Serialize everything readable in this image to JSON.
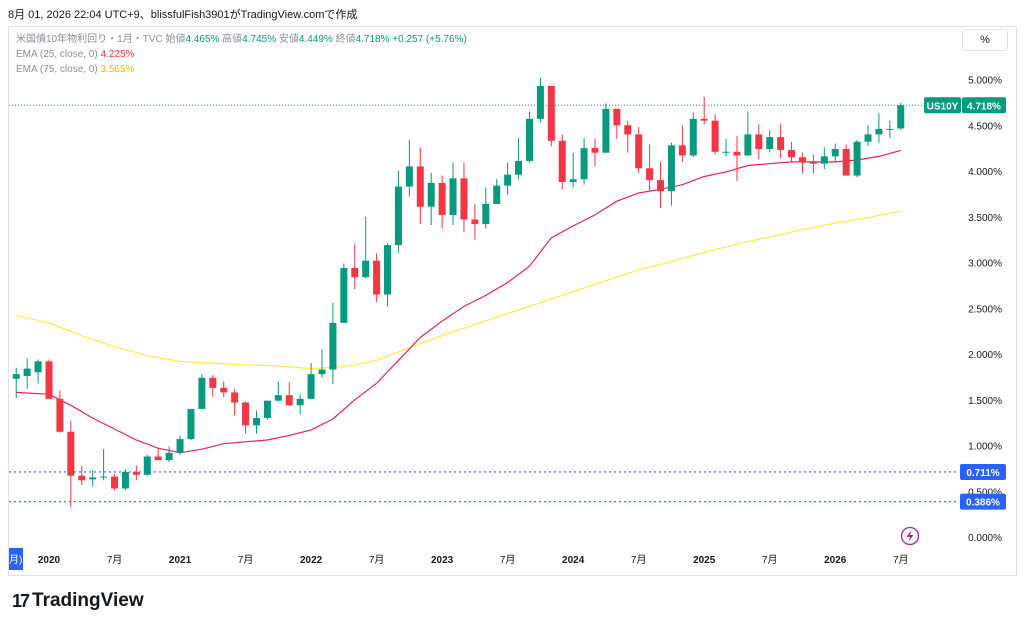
{
  "header": "8月 01, 2026 22:04 UTC+9、blissfulFish3901がTradingView.comで作成",
  "percent_button": "%",
  "legend": {
    "title": "米国債10年物利回り・1月・TVC",
    "open_label": "始値",
    "open": "4.465%",
    "high_label": "高値",
    "high": "4.745%",
    "low_label": "安値",
    "low": "4.449%",
    "close_label": "終値",
    "close": "4.718%",
    "change": "+0.257 (+5.76%)",
    "ema25_label": "EMA (25, close, 0)",
    "ema25_value": "4.225%",
    "ema75_label": "EMA (75, close, 0)",
    "ema75_value": "3.565%"
  },
  "symbol_tag": "US10Y",
  "price_tag": "4.718%",
  "hline_tags": [
    "0.711%",
    "0.386%"
  ],
  "footer_logo": "TradingView",
  "colors": {
    "up": "#089981",
    "down": "#f23645",
    "ema25": "#e91e63",
    "ema75": "#ffeb3b",
    "hline": "#2962ff"
  },
  "chart_data": {
    "type": "candlestick",
    "title": "米国債10年物利回り・1月・TVC",
    "y_ticks": [
      "5.000%",
      "4.500%",
      "4.000%",
      "3.500%",
      "3.000%",
      "2.500%",
      "2.000%",
      "1.500%",
      "1.000%",
      "0.500%",
      "0.000%"
    ],
    "y_tick_values": [
      5,
      4.5,
      4,
      3.5,
      3,
      2.5,
      2,
      1.5,
      1,
      0.5,
      0
    ],
    "x_ticks": [
      "月)",
      "2020",
      "7月",
      "2021",
      "7月",
      "2022",
      "7月",
      "2023",
      "7月",
      "2024",
      "7月",
      "2025",
      "7月",
      "2026",
      "7月"
    ],
    "x_tick_months": [
      -1.3,
      0,
      6,
      12,
      18,
      24,
      30,
      36,
      42,
      48,
      54,
      60,
      66,
      72,
      78
    ],
    "horizontal_lines": [
      0.711,
      0.386
    ],
    "last_price": 4.718,
    "candles": [
      {
        "m": -3,
        "o": 1.73,
        "h": 1.85,
        "l": 1.52,
        "c": 1.78
      },
      {
        "m": -2,
        "o": 1.76,
        "h": 1.95,
        "l": 1.62,
        "c": 1.84
      },
      {
        "m": -1,
        "o": 1.8,
        "h": 1.94,
        "l": 1.68,
        "c": 1.92
      },
      {
        "m": 0,
        "o": 1.92,
        "h": 1.94,
        "l": 1.51,
        "c": 1.51
      },
      {
        "m": 1,
        "o": 1.51,
        "h": 1.6,
        "l": 1.14,
        "c": 1.15
      },
      {
        "m": 2,
        "o": 1.15,
        "h": 1.27,
        "l": 0.33,
        "c": 0.67
      },
      {
        "m": 3,
        "o": 0.67,
        "h": 0.78,
        "l": 0.57,
        "c": 0.62
      },
      {
        "m": 4,
        "o": 0.63,
        "h": 0.73,
        "l": 0.55,
        "c": 0.65
      },
      {
        "m": 5,
        "o": 0.65,
        "h": 0.96,
        "l": 0.62,
        "c": 0.66
      },
      {
        "m": 6,
        "o": 0.66,
        "h": 0.69,
        "l": 0.51,
        "c": 0.53
      },
      {
        "m": 7,
        "o": 0.53,
        "h": 0.74,
        "l": 0.51,
        "c": 0.71
      },
      {
        "m": 8,
        "o": 0.71,
        "h": 0.78,
        "l": 0.62,
        "c": 0.68
      },
      {
        "m": 9,
        "o": 0.68,
        "h": 0.9,
        "l": 0.67,
        "c": 0.88
      },
      {
        "m": 10,
        "o": 0.88,
        "h": 0.97,
        "l": 0.86,
        "c": 0.84
      },
      {
        "m": 11,
        "o": 0.84,
        "h": 0.99,
        "l": 0.82,
        "c": 0.92
      },
      {
        "m": 12,
        "o": 0.92,
        "h": 1.11,
        "l": 0.9,
        "c": 1.07
      },
      {
        "m": 13,
        "o": 1.07,
        "h": 1.4,
        "l": 1.06,
        "c": 1.4
      },
      {
        "m": 14,
        "o": 1.4,
        "h": 1.78,
        "l": 1.4,
        "c": 1.74
      },
      {
        "m": 15,
        "o": 1.74,
        "h": 1.77,
        "l": 1.53,
        "c": 1.63
      },
      {
        "m": 16,
        "o": 1.63,
        "h": 1.7,
        "l": 1.53,
        "c": 1.58
      },
      {
        "m": 17,
        "o": 1.58,
        "h": 1.62,
        "l": 1.33,
        "c": 1.47
      },
      {
        "m": 18,
        "o": 1.47,
        "h": 1.48,
        "l": 1.13,
        "c": 1.22
      },
      {
        "m": 19,
        "o": 1.22,
        "h": 1.38,
        "l": 1.13,
        "c": 1.3
      },
      {
        "m": 20,
        "o": 1.3,
        "h": 1.49,
        "l": 1.28,
        "c": 1.49
      },
      {
        "m": 21,
        "o": 1.49,
        "h": 1.7,
        "l": 1.48,
        "c": 1.55
      },
      {
        "m": 22,
        "o": 1.55,
        "h": 1.69,
        "l": 1.43,
        "c": 1.44
      },
      {
        "m": 23,
        "o": 1.44,
        "h": 1.56,
        "l": 1.34,
        "c": 1.51
      },
      {
        "m": 24,
        "o": 1.51,
        "h": 1.9,
        "l": 1.51,
        "c": 1.78
      },
      {
        "m": 25,
        "o": 1.78,
        "h": 2.05,
        "l": 1.74,
        "c": 1.83
      },
      {
        "m": 26,
        "o": 1.83,
        "h": 2.56,
        "l": 1.67,
        "c": 2.34
      },
      {
        "m": 27,
        "o": 2.34,
        "h": 2.99,
        "l": 2.34,
        "c": 2.94
      },
      {
        "m": 28,
        "o": 2.94,
        "h": 3.2,
        "l": 2.71,
        "c": 2.84
      },
      {
        "m": 29,
        "o": 2.84,
        "h": 3.5,
        "l": 2.83,
        "c": 3.02
      },
      {
        "m": 30,
        "o": 3.02,
        "h": 3.1,
        "l": 2.57,
        "c": 2.65
      },
      {
        "m": 31,
        "o": 2.65,
        "h": 3.21,
        "l": 2.52,
        "c": 3.19
      },
      {
        "m": 32,
        "o": 3.19,
        "h": 4.0,
        "l": 3.11,
        "c": 3.83
      },
      {
        "m": 33,
        "o": 3.83,
        "h": 4.34,
        "l": 3.72,
        "c": 4.05
      },
      {
        "m": 34,
        "o": 4.05,
        "h": 4.26,
        "l": 3.42,
        "c": 3.61
      },
      {
        "m": 35,
        "o": 3.61,
        "h": 3.98,
        "l": 3.41,
        "c": 3.87
      },
      {
        "m": 36,
        "o": 3.87,
        "h": 3.95,
        "l": 3.37,
        "c": 3.52
      },
      {
        "m": 37,
        "o": 3.52,
        "h": 4.09,
        "l": 3.41,
        "c": 3.92
      },
      {
        "m": 38,
        "o": 3.92,
        "h": 4.09,
        "l": 3.33,
        "c": 3.47
      },
      {
        "m": 39,
        "o": 3.47,
        "h": 3.64,
        "l": 3.25,
        "c": 3.42
      },
      {
        "m": 40,
        "o": 3.42,
        "h": 3.82,
        "l": 3.37,
        "c": 3.64
      },
      {
        "m": 41,
        "o": 3.64,
        "h": 3.91,
        "l": 3.64,
        "c": 3.84
      },
      {
        "m": 42,
        "o": 3.84,
        "h": 4.09,
        "l": 3.74,
        "c": 3.96
      },
      {
        "m": 43,
        "o": 3.96,
        "h": 4.36,
        "l": 3.91,
        "c": 4.11
      },
      {
        "m": 44,
        "o": 4.11,
        "h": 4.65,
        "l": 4.09,
        "c": 4.57
      },
      {
        "m": 45,
        "o": 4.57,
        "h": 5.02,
        "l": 4.53,
        "c": 4.93
      },
      {
        "m": 46,
        "o": 4.93,
        "h": 4.93,
        "l": 4.27,
        "c": 4.33
      },
      {
        "m": 47,
        "o": 4.33,
        "h": 4.4,
        "l": 3.8,
        "c": 3.88
      },
      {
        "m": 48,
        "o": 3.88,
        "h": 4.2,
        "l": 3.82,
        "c": 3.91
      },
      {
        "m": 49,
        "o": 3.91,
        "h": 4.36,
        "l": 3.85,
        "c": 4.25
      },
      {
        "m": 50,
        "o": 4.25,
        "h": 4.35,
        "l": 4.05,
        "c": 4.2
      },
      {
        "m": 51,
        "o": 4.2,
        "h": 4.74,
        "l": 4.2,
        "c": 4.68
      },
      {
        "m": 52,
        "o": 4.68,
        "h": 4.64,
        "l": 4.35,
        "c": 4.5
      },
      {
        "m": 53,
        "o": 4.5,
        "h": 4.55,
        "l": 4.2,
        "c": 4.4
      },
      {
        "m": 54,
        "o": 4.4,
        "h": 4.48,
        "l": 3.98,
        "c": 4.03
      },
      {
        "m": 55,
        "o": 4.03,
        "h": 4.29,
        "l": 3.78,
        "c": 3.9
      },
      {
        "m": 56,
        "o": 3.9,
        "h": 4.1,
        "l": 3.6,
        "c": 3.78
      },
      {
        "m": 57,
        "o": 3.78,
        "h": 4.31,
        "l": 3.62,
        "c": 4.28
      },
      {
        "m": 58,
        "o": 4.28,
        "h": 4.5,
        "l": 4.1,
        "c": 4.17
      },
      {
        "m": 59,
        "o": 4.17,
        "h": 4.64,
        "l": 4.15,
        "c": 4.57
      },
      {
        "m": 60,
        "o": 4.57,
        "h": 4.81,
        "l": 4.51,
        "c": 4.55
      },
      {
        "m": 61,
        "o": 4.55,
        "h": 4.62,
        "l": 4.18,
        "c": 4.21
      },
      {
        "m": 62,
        "o": 4.21,
        "h": 4.35,
        "l": 4.16,
        "c": 4.21
      },
      {
        "m": 63,
        "o": 4.21,
        "h": 4.38,
        "l": 3.89,
        "c": 4.17
      },
      {
        "m": 64,
        "o": 4.17,
        "h": 4.65,
        "l": 4.17,
        "c": 4.4
      },
      {
        "m": 65,
        "o": 4.4,
        "h": 4.51,
        "l": 4.13,
        "c": 4.24
      },
      {
        "m": 66,
        "o": 4.24,
        "h": 4.45,
        "l": 4.2,
        "c": 4.37
      },
      {
        "m": 67,
        "o": 4.37,
        "h": 4.52,
        "l": 4.14,
        "c": 4.23
      },
      {
        "m": 68,
        "o": 4.23,
        "h": 4.32,
        "l": 4.1,
        "c": 4.15
      },
      {
        "m": 69,
        "o": 4.15,
        "h": 4.2,
        "l": 3.98,
        "c": 4.1
      },
      {
        "m": 70,
        "o": 4.1,
        "h": 4.18,
        "l": 3.97,
        "c": 4.08
      },
      {
        "m": 71,
        "o": 4.08,
        "h": 4.26,
        "l": 4.02,
        "c": 4.16
      },
      {
        "m": 72,
        "o": 4.16,
        "h": 4.3,
        "l": 4.1,
        "c": 4.24
      },
      {
        "m": 73,
        "o": 4.24,
        "h": 4.29,
        "l": 3.95,
        "c": 3.95
      },
      {
        "m": 74,
        "o": 3.95,
        "h": 4.34,
        "l": 3.93,
        "c": 4.32
      },
      {
        "m": 75,
        "o": 4.32,
        "h": 4.5,
        "l": 4.27,
        "c": 4.4
      },
      {
        "m": 76,
        "o": 4.4,
        "h": 4.63,
        "l": 4.31,
        "c": 4.46
      },
      {
        "m": 77,
        "o": 4.46,
        "h": 4.55,
        "l": 4.36,
        "c": 4.46
      },
      {
        "m": 78,
        "o": 4.465,
        "h": 4.745,
        "l": 4.449,
        "c": 4.718
      }
    ],
    "ema25": [
      [
        -3,
        1.58
      ],
      [
        0,
        1.56
      ],
      [
        2,
        1.44
      ],
      [
        4,
        1.3
      ],
      [
        6,
        1.18
      ],
      [
        8,
        1.06
      ],
      [
        10,
        0.97
      ],
      [
        12,
        0.92
      ],
      [
        14,
        0.96
      ],
      [
        16,
        1.02
      ],
      [
        18,
        1.04
      ],
      [
        20,
        1.06
      ],
      [
        22,
        1.11
      ],
      [
        24,
        1.17
      ],
      [
        26,
        1.29
      ],
      [
        28,
        1.5
      ],
      [
        30,
        1.68
      ],
      [
        32,
        1.93
      ],
      [
        34,
        2.18
      ],
      [
        36,
        2.36
      ],
      [
        38,
        2.52
      ],
      [
        40,
        2.64
      ],
      [
        42,
        2.78
      ],
      [
        44,
        2.96
      ],
      [
        46,
        3.27
      ],
      [
        48,
        3.4
      ],
      [
        50,
        3.52
      ],
      [
        52,
        3.67
      ],
      [
        54,
        3.76
      ],
      [
        56,
        3.8
      ],
      [
        58,
        3.85
      ],
      [
        60,
        3.94
      ],
      [
        62,
        3.99
      ],
      [
        64,
        4.06
      ],
      [
        66,
        4.08
      ],
      [
        68,
        4.1
      ],
      [
        70,
        4.1
      ],
      [
        72,
        4.1
      ],
      [
        74,
        4.12
      ],
      [
        76,
        4.16
      ],
      [
        78,
        4.225
      ]
    ],
    "ema75": [
      [
        -3,
        2.42
      ],
      [
        0,
        2.34
      ],
      [
        3,
        2.2
      ],
      [
        6,
        2.08
      ],
      [
        9,
        1.98
      ],
      [
        12,
        1.92
      ],
      [
        15,
        1.9
      ],
      [
        18,
        1.88
      ],
      [
        21,
        1.87
      ],
      [
        24,
        1.84
      ],
      [
        27,
        1.86
      ],
      [
        30,
        1.93
      ],
      [
        33,
        2.07
      ],
      [
        36,
        2.2
      ],
      [
        39,
        2.32
      ],
      [
        42,
        2.44
      ],
      [
        45,
        2.56
      ],
      [
        48,
        2.68
      ],
      [
        51,
        2.8
      ],
      [
        54,
        2.92
      ],
      [
        57,
        3.01
      ],
      [
        60,
        3.11
      ],
      [
        63,
        3.2
      ],
      [
        66,
        3.28
      ],
      [
        69,
        3.36
      ],
      [
        72,
        3.43
      ],
      [
        75,
        3.49
      ],
      [
        78,
        3.565
      ]
    ]
  }
}
